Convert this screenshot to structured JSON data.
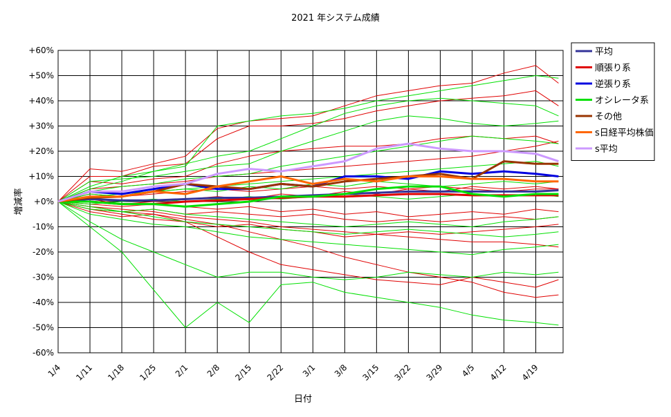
{
  "chart_data": {
    "type": "line",
    "title": "2021 年システム成績",
    "xlabel": "日付",
    "ylabel": "増減率",
    "ylim": [
      -60,
      60
    ],
    "y_ticks": [
      "+60%",
      "+50%",
      "+40%",
      "+30%",
      "+20%",
      "+10%",
      "+0%",
      "-10%",
      "-20%",
      "-30%",
      "-40%",
      "-50%",
      "-60%"
    ],
    "y_tick_values": [
      60,
      50,
      40,
      30,
      20,
      10,
      0,
      -10,
      -20,
      -30,
      -40,
      -50,
      -60
    ],
    "x_ticks": [
      "1/4",
      "1/11",
      "1/18",
      "1/25",
      "2/1",
      "2/8",
      "2/15",
      "2/22",
      "3/1",
      "3/8",
      "3/15",
      "3/22",
      "3/29",
      "4/5",
      "4/12",
      "4/19"
    ],
    "x_tick_days": [
      0,
      7,
      14,
      21,
      28,
      35,
      42,
      49,
      56,
      63,
      70,
      77,
      84,
      91,
      98,
      105
    ],
    "x_range_days": [
      0,
      111
    ],
    "grid": true,
    "legend_position": "right",
    "x_knots": [
      0,
      7,
      14,
      21,
      28,
      35,
      42,
      49,
      56,
      63,
      70,
      77,
      84,
      91,
      98,
      105,
      110
    ],
    "series": [
      {
        "name": "平均",
        "color": "#333399",
        "emphasis": true,
        "values": [
          0,
          1,
          0.5,
          0.5,
          1,
          1.5,
          1.5,
          2,
          2.5,
          3,
          3.5,
          4,
          4,
          4,
          4,
          4,
          4.5
        ]
      },
      {
        "name": "順張り系",
        "color": "#e00000",
        "emphasis": true,
        "values": [
          0,
          0,
          -1,
          -1,
          0,
          0.5,
          1,
          1.5,
          2,
          2,
          2.5,
          3,
          3,
          2.5,
          2.5,
          2.5,
          2.5
        ]
      },
      {
        "name": "逆張り系",
        "color": "#0000e0",
        "emphasis": true,
        "values": [
          0,
          4,
          3,
          5,
          7,
          5,
          5,
          7,
          6,
          10,
          10,
          9,
          12,
          11,
          12,
          11,
          10
        ]
      },
      {
        "name": "オシレータ系",
        "color": "#00e000",
        "emphasis": true,
        "values": [
          0,
          0,
          -1,
          -1,
          -2,
          -1,
          0,
          2,
          2,
          3,
          5,
          6,
          6,
          3,
          2,
          3,
          3
        ]
      },
      {
        "name": "その他",
        "color": "#993300",
        "emphasis": true,
        "values": [
          0,
          1.5,
          2,
          4,
          7,
          6,
          5,
          7,
          6,
          8,
          9,
          10,
          11,
          9,
          16,
          15,
          15
        ]
      },
      {
        "name": "s日経平均株価",
        "color": "#ff6600",
        "emphasis": true,
        "values": [
          0,
          2,
          2,
          4,
          3,
          6,
          8,
          10,
          7,
          9,
          8,
          10,
          10,
          9,
          9,
          8,
          8
        ]
      },
      {
        "name": "s平均",
        "color": "#cc99ff",
        "emphasis": true,
        "values": [
          0,
          4,
          4,
          6,
          7,
          11,
          13,
          12,
          14,
          16,
          21,
          23,
          21,
          20,
          20,
          19,
          16
        ]
      },
      {
        "name": "",
        "color": "#e00000",
        "emphasis": false,
        "values": [
          0,
          13,
          12,
          15,
          18,
          29,
          32,
          33,
          34,
          38,
          42,
          44,
          46,
          47,
          51,
          54,
          47
        ]
      },
      {
        "name": "",
        "color": "#e00000",
        "emphasis": false,
        "values": [
          0,
          10,
          10,
          14,
          15,
          25,
          30,
          30,
          31,
          33,
          36,
          38,
          40,
          41,
          42,
          44,
          38
        ]
      },
      {
        "name": "",
        "color": "#e00000",
        "emphasis": false,
        "values": [
          0,
          8,
          7,
          9,
          10,
          15,
          18,
          20,
          21,
          22,
          22,
          23,
          25,
          26,
          25,
          26,
          23
        ]
      },
      {
        "name": "",
        "color": "#e00000",
        "emphasis": false,
        "values": [
          0,
          -3,
          -5,
          -7,
          -8,
          -14,
          -20,
          -25,
          -27,
          -29,
          -31,
          -32,
          -33,
          -30,
          -32,
          -34,
          -31
        ]
      },
      {
        "name": "",
        "color": "#e00000",
        "emphasis": false,
        "values": [
          0,
          -2,
          -4,
          -5,
          -7,
          -9,
          -12,
          -15,
          -18,
          -22,
          -25,
          -28,
          -30,
          -32,
          -36,
          -38,
          -37
        ]
      },
      {
        "name": "",
        "color": "#e00000",
        "emphasis": false,
        "values": [
          0,
          -2,
          -3,
          -4,
          -6,
          -7,
          -8,
          -10,
          -11,
          -12,
          -13,
          -14,
          -15,
          -16,
          -16,
          -17,
          -18
        ]
      },
      {
        "name": "",
        "color": "#e00000",
        "emphasis": false,
        "values": [
          0,
          3,
          2,
          3,
          4,
          5,
          4,
          5,
          6,
          5,
          6,
          5,
          6,
          5,
          4,
          5,
          5
        ]
      },
      {
        "name": "",
        "color": "#e00000",
        "emphasis": false,
        "values": [
          0,
          -3,
          -4,
          -3,
          -5,
          -4,
          -5,
          -6,
          -5,
          -7,
          -8,
          -7,
          -8,
          -7,
          -6,
          -7,
          -6
        ]
      },
      {
        "name": "",
        "color": "#e00000",
        "emphasis": false,
        "values": [
          0,
          1,
          -1,
          0,
          1,
          2,
          1,
          3,
          2,
          4,
          3,
          5,
          4,
          6,
          5,
          6,
          5
        ]
      },
      {
        "name": "",
        "color": "#e00000",
        "emphasis": false,
        "values": [
          0,
          -1,
          -2,
          -1,
          -2,
          -3,
          -2,
          -4,
          -3,
          -5,
          -4,
          -6,
          -5,
          -4,
          -5,
          -3,
          -4
        ]
      },
      {
        "name": "",
        "color": "#e00000",
        "emphasis": false,
        "values": [
          0,
          5,
          6,
          7,
          8,
          10,
          11,
          12,
          13,
          14,
          15,
          16,
          17,
          18,
          20,
          22,
          24
        ]
      },
      {
        "name": "",
        "color": "#e00000",
        "emphasis": false,
        "values": [
          0,
          -4,
          -6,
          -5,
          -8,
          -10,
          -9,
          -11,
          -12,
          -14,
          -13,
          -12,
          -13,
          -12,
          -11,
          -10,
          -9
        ]
      },
      {
        "name": "",
        "color": "#00e000",
        "emphasis": false,
        "values": [
          0,
          5,
          8,
          12,
          14,
          30,
          32,
          34,
          35,
          37,
          40,
          42,
          44,
          46,
          48,
          50,
          49
        ]
      },
      {
        "name": "",
        "color": "#00e000",
        "emphasis": false,
        "values": [
          0,
          -10,
          -20,
          -35,
          -50,
          -40,
          -48,
          -33,
          -32,
          -36,
          -38,
          -40,
          -42,
          -45,
          -47,
          -48,
          -49
        ]
      },
      {
        "name": "",
        "color": "#00e000",
        "emphasis": false,
        "values": [
          0,
          -8,
          -15,
          -20,
          -25,
          -30,
          -28,
          -28,
          -30,
          -31,
          -30,
          -28,
          -29,
          -30,
          -28,
          -29,
          -28
        ]
      },
      {
        "name": "",
        "color": "#00e000",
        "emphasis": false,
        "values": [
          0,
          8,
          9,
          10,
          12,
          14,
          15,
          20,
          24,
          28,
          32,
          34,
          33,
          31,
          30,
          31,
          32
        ]
      },
      {
        "name": "",
        "color": "#00e000",
        "emphasis": false,
        "values": [
          0,
          4,
          6,
          7,
          9,
          10,
          11,
          14,
          16,
          18,
          20,
          22,
          24,
          26,
          25,
          24,
          23
        ]
      },
      {
        "name": "",
        "color": "#00e000",
        "emphasis": false,
        "values": [
          0,
          -5,
          -7,
          -9,
          -10,
          -12,
          -14,
          -15,
          -16,
          -17,
          -18,
          -19,
          -20,
          -21,
          -19,
          -18,
          -17
        ]
      },
      {
        "name": "",
        "color": "#00e000",
        "emphasis": false,
        "values": [
          0,
          -3,
          -4,
          -6,
          -8,
          -9,
          -10,
          -11,
          -12,
          -13,
          -12,
          -11,
          -12,
          -13,
          -14,
          -13,
          -12
        ]
      },
      {
        "name": "",
        "color": "#00e000",
        "emphasis": false,
        "values": [
          0,
          2,
          3,
          4,
          5,
          6,
          7,
          8,
          9,
          10,
          11,
          12,
          13,
          14,
          15,
          16,
          14
        ]
      },
      {
        "name": "",
        "color": "#00e000",
        "emphasis": false,
        "values": [
          0,
          -1,
          0,
          1,
          0,
          1,
          2,
          1,
          2,
          3,
          2,
          1,
          2,
          3,
          2,
          3,
          2
        ]
      },
      {
        "name": "",
        "color": "#00e000",
        "emphasis": false,
        "values": [
          0,
          3,
          2,
          4,
          5,
          4,
          6,
          5,
          7,
          6,
          8,
          7,
          6,
          7,
          8,
          7,
          8
        ]
      },
      {
        "name": "",
        "color": "#00e000",
        "emphasis": false,
        "values": [
          0,
          -2,
          -4,
          -3,
          -5,
          -6,
          -7,
          -8,
          -9,
          -10,
          -9,
          -8,
          -9,
          -10,
          -8,
          -7,
          -6
        ]
      },
      {
        "name": "",
        "color": "#00e000",
        "emphasis": false,
        "values": [
          0,
          6,
          10,
          12,
          15,
          18,
          20,
          25,
          30,
          35,
          38,
          40,
          41,
          40,
          39,
          38,
          34
        ]
      }
    ]
  }
}
